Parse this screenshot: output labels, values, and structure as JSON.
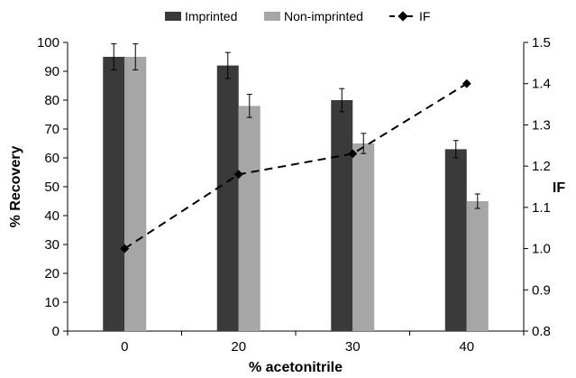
{
  "chart_data": {
    "type": "bar",
    "title": "",
    "xlabel": "% acetonitrile",
    "ylabel": "% Recovery",
    "y2label": "IF",
    "categories": [
      "0",
      "20",
      "30",
      "40"
    ],
    "ylim": [
      0,
      100
    ],
    "yticks": [
      "0",
      "10",
      "20",
      "30",
      "40",
      "50",
      "60",
      "70",
      "80",
      "90",
      "100"
    ],
    "y2lim": [
      0.8,
      1.5
    ],
    "y2ticks": [
      "0.8",
      "0.9",
      "1.0",
      "1.1",
      "1.2",
      "1.3",
      "1.4",
      "1.5"
    ],
    "grid": false,
    "legend_position": "top",
    "series": [
      {
        "name": "Imprinted",
        "type": "bar",
        "axis": "left",
        "color": "#3a3a3a",
        "values": [
          95,
          92,
          80,
          63
        ],
        "errors": [
          4.5,
          4.5,
          4,
          3
        ]
      },
      {
        "name": "Non-imprinted",
        "type": "bar",
        "axis": "left",
        "color": "#a6a6a6",
        "values": [
          95,
          78,
          65,
          45
        ],
        "errors": [
          4.5,
          4,
          3.5,
          2.5
        ]
      },
      {
        "name": "IF",
        "type": "line",
        "axis": "right",
        "color": "#000000",
        "values": [
          1.0,
          1.18,
          1.23,
          1.4
        ]
      }
    ]
  }
}
